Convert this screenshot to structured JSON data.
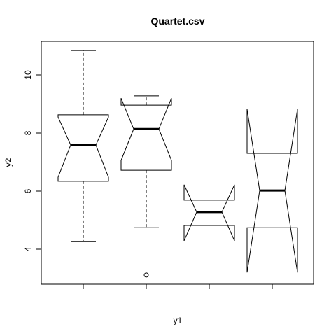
{
  "chart_data": {
    "type": "boxplot",
    "title": "Quartet.csv",
    "x_label": "y1",
    "y_label": "y2",
    "categories": [
      null,
      null,
      null,
      null
    ],
    "notch": true,
    "boxes": [
      {
        "whisker_low": 4.26,
        "q1": 6.34,
        "notch_low": 6.48,
        "median": 7.59,
        "notch_high": 8.55,
        "q3": 8.63,
        "whisker_high": 10.84,
        "outliers": []
      },
      {
        "whisker_low": 4.74,
        "q1": 6.72,
        "notch_low": 7.06,
        "median": 8.14,
        "notch_high": 9.2,
        "q3": 8.96,
        "whisker_high": 9.28,
        "outliers": [
          3.11
        ]
      },
      {
        "whisker_low": 4.82,
        "q1": 4.82,
        "notch_low": 4.29,
        "median": 5.28,
        "notch_high": 6.22,
        "q3": 5.69,
        "whisker_high": 5.69,
        "outliers": []
      },
      {
        "whisker_low": 4.74,
        "q1": 4.74,
        "notch_low": 3.2,
        "median": 6.02,
        "notch_high": 8.82,
        "q3": 7.3,
        "whisker_high": 7.3,
        "outliers": []
      }
    ],
    "color": "#000000",
    "ylim": [
      2.795,
      11.157
    ],
    "yticks": [
      4,
      6,
      8,
      10
    ]
  }
}
